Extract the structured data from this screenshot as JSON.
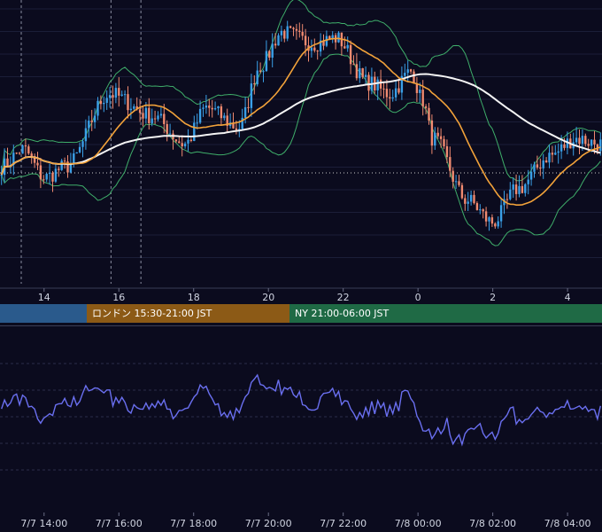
{
  "colors": {
    "background": "#0b0b1e",
    "up_candle": "#3aa0e8",
    "down_candle": "#f08a70",
    "ma_short": "#f2a23a",
    "ma_long": "#f4f4f4",
    "bollinger": "#3fae6a",
    "oscillator": "#6a6ff0",
    "session_tokyo": "#2a5a8c",
    "session_london": "#8c5a16",
    "session_ny": "#1f6a45"
  },
  "chart_data": [
    {
      "type": "candlestick",
      "name": "price",
      "x_ticks": [
        "14",
        "16",
        "18",
        "20",
        "22",
        "0",
        "2",
        "4"
      ],
      "x_tick_hours": [
        14,
        16,
        18,
        20,
        22,
        24,
        26,
        28
      ],
      "x_range_hours": [
        13.2,
        29.3
      ],
      "y_range": [
        0,
        100
      ],
      "marker_lines_hours": [
        13.2,
        15.6,
        16.4
      ],
      "indicators": [
        "moving_average_short",
        "moving_average_long",
        "bollinger_bands"
      ],
      "sessions": [
        {
          "label": "",
          "start_hour": 13.2,
          "end_hour": 15.6,
          "color": "#2a5a8c"
        },
        {
          "label": "ロンドン 15:30-21:00 JST",
          "start_hour": 15.6,
          "end_hour": 20.9,
          "color": "#8c5a16"
        },
        {
          "label": "NY 21:00-06:00 JST",
          "start_hour": 20.9,
          "end_hour": 29.3,
          "color": "#1f6a45"
        }
      ]
    },
    {
      "type": "line",
      "name": "oscillator",
      "x_ticks": [
        "7/7 14:00",
        "7/7 16:00",
        "7/7 18:00",
        "7/7 20:00",
        "7/7 22:00",
        "7/8 00:00",
        "7/8 02:00",
        "7/8 04:00"
      ],
      "x_tick_hours": [
        14,
        16,
        18,
        20,
        22,
        24,
        26,
        28
      ],
      "gridlines": 5
    }
  ]
}
